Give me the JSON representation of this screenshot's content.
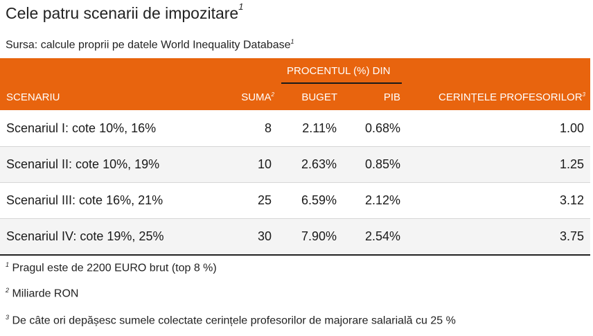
{
  "title": "Cele patru scenarii de impozitare",
  "title_sup": "1",
  "subtitle": "Sursa: calcule proprii pe datele World Inequality Database",
  "subtitle_sup": "1",
  "chart_data": {
    "type": "table",
    "group_header": "PROCENTUL (%) DIN",
    "columns": [
      {
        "label": "SCENARIU",
        "sup": ""
      },
      {
        "label": "SUMA",
        "sup": "2"
      },
      {
        "label": "BUGET",
        "sup": ""
      },
      {
        "label": "PIB",
        "sup": ""
      },
      {
        "label": "CERINȚELE PROFESORILOR",
        "sup": "3"
      }
    ],
    "rows": [
      {
        "scenariu": "Scenariul I: cote 10%, 16%",
        "suma": "8",
        "buget": "2.11%",
        "pib": "0.68%",
        "cerinte": "1.00"
      },
      {
        "scenariu": "Scenariul II: cote 10%, 19%",
        "suma": "10",
        "buget": "2.63%",
        "pib": "0.85%",
        "cerinte": "1.25"
      },
      {
        "scenariu": "Scenariul III: cote 16%, 21%",
        "suma": "25",
        "buget": "6.59%",
        "pib": "2.12%",
        "cerinte": "3.12"
      },
      {
        "scenariu": "Scenariul IV: cote 19%, 25%",
        "suma": "30",
        "buget": "7.90%",
        "pib": "2.54%",
        "cerinte": "3.75"
      }
    ]
  },
  "notes": [
    {
      "sup": "1",
      "text": "Pragul este de 2200 EURO brut (top 8 %)"
    },
    {
      "sup": "2",
      "text": "Miliarde RON"
    },
    {
      "sup": "3",
      "text": "De câte ori depășesc sumele colectate cerințele profesorilor de majorare salarială cu 25 %"
    }
  ],
  "colors": {
    "header_bg": "#e8640e",
    "header_text": "#ffffff",
    "alt_row": "#f4f4f4"
  }
}
